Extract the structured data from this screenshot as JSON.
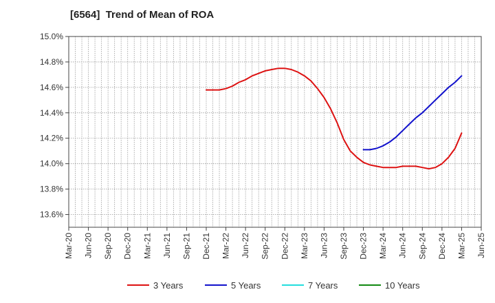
{
  "chart_data": {
    "type": "line",
    "title": "[6564]  Trend of Mean of ROA",
    "xlabel": "",
    "ylabel": "",
    "x_tick_labels": [
      "Mar-20",
      "Jun-20",
      "Sep-20",
      "Dec-20",
      "Mar-21",
      "Jun-21",
      "Sep-21",
      "Dec-21",
      "Mar-22",
      "Jun-22",
      "Sep-22",
      "Dec-22",
      "Mar-23",
      "Jun-23",
      "Sep-23",
      "Dec-23",
      "Mar-24",
      "Jun-24",
      "Sep-24",
      "Dec-24",
      "Mar-25",
      "Jun-25"
    ],
    "y_tick_labels": [
      "13.6%",
      "13.8%",
      "14.0%",
      "14.2%",
      "14.4%",
      "14.6%",
      "14.8%",
      "15.0%"
    ],
    "y_ticks": [
      13.6,
      13.8,
      14.0,
      14.2,
      14.4,
      14.6,
      14.8,
      15.0
    ],
    "ylim": [
      13.5,
      15.0
    ],
    "grid": true,
    "legend_position": "bottom",
    "series": [
      {
        "name": "3 Years",
        "color": "#dd1111",
        "x": [
          "Dec-21",
          "Jan-22",
          "Feb-22",
          "Mar-22",
          "Apr-22",
          "May-22",
          "Jun-22",
          "Jul-22",
          "Aug-22",
          "Sep-22",
          "Oct-22",
          "Nov-22",
          "Dec-22",
          "Jan-23",
          "Feb-23",
          "Mar-23",
          "Apr-23",
          "May-23",
          "Jun-23",
          "Jul-23",
          "Aug-23",
          "Sep-23",
          "Oct-23",
          "Nov-23",
          "Dec-23",
          "Jan-24",
          "Feb-24",
          "Mar-24",
          "Apr-24",
          "May-24",
          "Jun-24",
          "Jul-24",
          "Aug-24",
          "Sep-24",
          "Oct-24",
          "Nov-24",
          "Dec-24",
          "Jan-25",
          "Feb-25",
          "Mar-25"
        ],
        "values": [
          14.58,
          14.58,
          14.58,
          14.59,
          14.61,
          14.64,
          14.66,
          14.69,
          14.71,
          14.73,
          14.74,
          14.75,
          14.75,
          14.74,
          14.72,
          14.69,
          14.65,
          14.59,
          14.52,
          14.43,
          14.32,
          14.19,
          14.1,
          14.05,
          14.01,
          13.99,
          13.98,
          13.97,
          13.97,
          13.97,
          13.98,
          13.98,
          13.98,
          13.97,
          13.96,
          13.97,
          14.0,
          14.05,
          14.12,
          14.24
        ]
      },
      {
        "name": "5 Years",
        "color": "#1111cc",
        "x": [
          "Dec-23",
          "Jan-24",
          "Feb-24",
          "Mar-24",
          "Apr-24",
          "May-24",
          "Jun-24",
          "Jul-24",
          "Aug-24",
          "Sep-24",
          "Oct-24",
          "Nov-24",
          "Dec-24",
          "Jan-25",
          "Feb-25",
          "Mar-25"
        ],
        "values": [
          14.11,
          14.11,
          14.12,
          14.14,
          14.17,
          14.21,
          14.26,
          14.31,
          14.36,
          14.4,
          14.45,
          14.5,
          14.55,
          14.6,
          14.64,
          14.69
        ]
      },
      {
        "name": "7 Years",
        "color": "#22dddd",
        "x": [],
        "values": []
      },
      {
        "name": "10 Years",
        "color": "#118811",
        "x": [],
        "values": []
      }
    ]
  }
}
